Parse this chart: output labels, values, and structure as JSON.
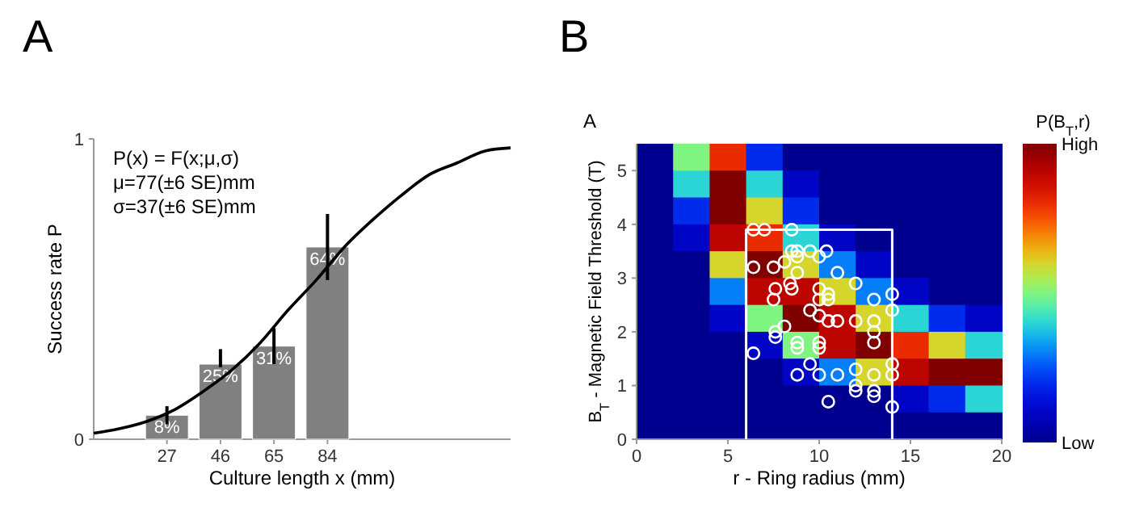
{
  "chart_data": [
    {
      "type": "bar",
      "title": "A",
      "xlabel": "Culture length x (mm)",
      "ylabel": "Success rate P",
      "annotations": [
        "P(x) = F(x;μ,σ)",
        "μ=77(±6 SE)mm",
        "σ=37(±6 SE)mm"
      ],
      "xlim": [
        1,
        149
      ],
      "xticks": [
        27,
        46,
        65,
        84
      ],
      "ylim": [
        0,
        1
      ],
      "yticks": [
        0,
        1
      ],
      "series": [
        {
          "type": "bar",
          "color": "#808080",
          "x": [
            27,
            46,
            65,
            84
          ],
          "values": [
            0.08,
            0.25,
            0.31,
            0.64
          ],
          "value_labels": [
            "8%",
            "25%",
            "31%",
            "64%"
          ],
          "errors": [
            [
              0.05,
              0.11
            ],
            [
              0.24,
              0.3
            ],
            [
              0.25,
              0.37
            ],
            [
              0.53,
              0.75
            ]
          ]
        },
        {
          "type": "line",
          "color": "#000000",
          "x": [
            1,
            10,
            20,
            30,
            40,
            50,
            60,
            70,
            80,
            90,
            100,
            110,
            120,
            130,
            140,
            149
          ],
          "values": [
            0.02,
            0.035,
            0.06,
            0.1,
            0.16,
            0.23,
            0.32,
            0.43,
            0.53,
            0.64,
            0.73,
            0.81,
            0.88,
            0.92,
            0.96,
            0.97
          ]
        }
      ]
    },
    {
      "type": "heatmap",
      "title": "B",
      "xlabel": "r - Ring radius (mm)",
      "ylabel": "B$_{T}$ - Magnetic Field Threshold (T)",
      "clabel": "P(B$_{T}$,r)",
      "annotations": [
        "A"
      ],
      "x": [
        1,
        3,
        5,
        7,
        9,
        11,
        13,
        15,
        17,
        19
      ],
      "y": [
        5.25,
        4.75,
        4.25,
        3.75,
        3.25,
        2.75,
        2.25,
        1.75,
        1.25,
        0.75,
        0.25
      ],
      "cells": [
        [
          0,
          0.5,
          0.8,
          0.2,
          0,
          0,
          0,
          0,
          0,
          0
        ],
        [
          0,
          0.4,
          1,
          0.4,
          0.1,
          0,
          0,
          0,
          0,
          0
        ],
        [
          0,
          0.2,
          1,
          0.6,
          0.2,
          0,
          0,
          0,
          0,
          0
        ],
        [
          0,
          0.1,
          0.9,
          0.8,
          0.4,
          0.1,
          0,
          0,
          0,
          0
        ],
        [
          0,
          0,
          0.6,
          1,
          0.6,
          0.3,
          0.1,
          0,
          0,
          0
        ],
        [
          0,
          0,
          0.3,
          0.9,
          0.9,
          0.6,
          0.3,
          0.1,
          0,
          0
        ],
        [
          0,
          0,
          0.1,
          0.5,
          1,
          0.9,
          0.6,
          0.4,
          0.2,
          0.1
        ],
        [
          0,
          0,
          0,
          0.1,
          0.5,
          0.9,
          1,
          0.8,
          0.6,
          0.4
        ],
        [
          0,
          0,
          0,
          0,
          0.1,
          0.3,
          0.6,
          0.9,
          1,
          1
        ],
        [
          0,
          0,
          0,
          0,
          0,
          0,
          0,
          0.1,
          0.2,
          0.4
        ],
        [
          0,
          0,
          0,
          0,
          0,
          0,
          0,
          0,
          0,
          0
        ]
      ],
      "clim": [
        0,
        1
      ],
      "cticks": [
        {
          "value": 0,
          "label": "Low"
        },
        {
          "value": 1,
          "label": "High"
        }
      ],
      "xlim": [
        0,
        20
      ],
      "xticks": [
        0,
        5,
        10,
        15,
        20
      ],
      "ylim": [
        0,
        5.5
      ],
      "yticks": [
        0,
        1,
        2,
        3,
        4,
        5
      ],
      "series": [
        {
          "type": "scatter",
          "marker": "circle",
          "color": "#ffffff",
          "x": [
            6.4,
            7,
            8.5,
            8.5,
            8.8,
            9.5,
            10.4,
            8.1,
            8.8,
            10,
            6.4,
            7.5,
            8.8,
            11,
            8.4,
            12,
            8.5,
            7.6,
            10,
            10.5,
            7.5,
            10,
            10.5,
            13,
            14,
            9.5,
            10,
            10.5,
            11,
            12,
            13,
            14,
            8.1,
            7.6,
            7.6,
            8.8,
            8.8,
            10,
            10,
            13,
            13,
            6.4,
            9.5,
            12,
            14,
            8.8,
            10,
            11,
            13,
            14,
            12,
            12,
            13,
            13,
            10.5,
            14
          ],
          "values": [
            3.9,
            3.9,
            3.9,
            3.5,
            3.5,
            3.5,
            3.5,
            3.3,
            3.4,
            3.4,
            3.2,
            3.2,
            3.1,
            3.1,
            2.9,
            2.9,
            2.8,
            2.8,
            2.8,
            2.7,
            2.6,
            2.6,
            2.6,
            2.6,
            2.7,
            2.4,
            2.3,
            2.2,
            2.2,
            2.2,
            2.2,
            2.4,
            2.1,
            2,
            1.9,
            1.8,
            1.7,
            1.8,
            1.7,
            2,
            1.8,
            1.6,
            1.4,
            1.3,
            1.4,
            1.2,
            1.2,
            1.2,
            1.2,
            1.2,
            1,
            0.9,
            0.9,
            0.8,
            0.7,
            0.6
          ]
        },
        {
          "type": "line",
          "color": "#ffffff",
          "x": [
            6,
            6,
            14,
            14
          ],
          "values": [
            0,
            3.9,
            3.9,
            0
          ]
        }
      ]
    }
  ]
}
